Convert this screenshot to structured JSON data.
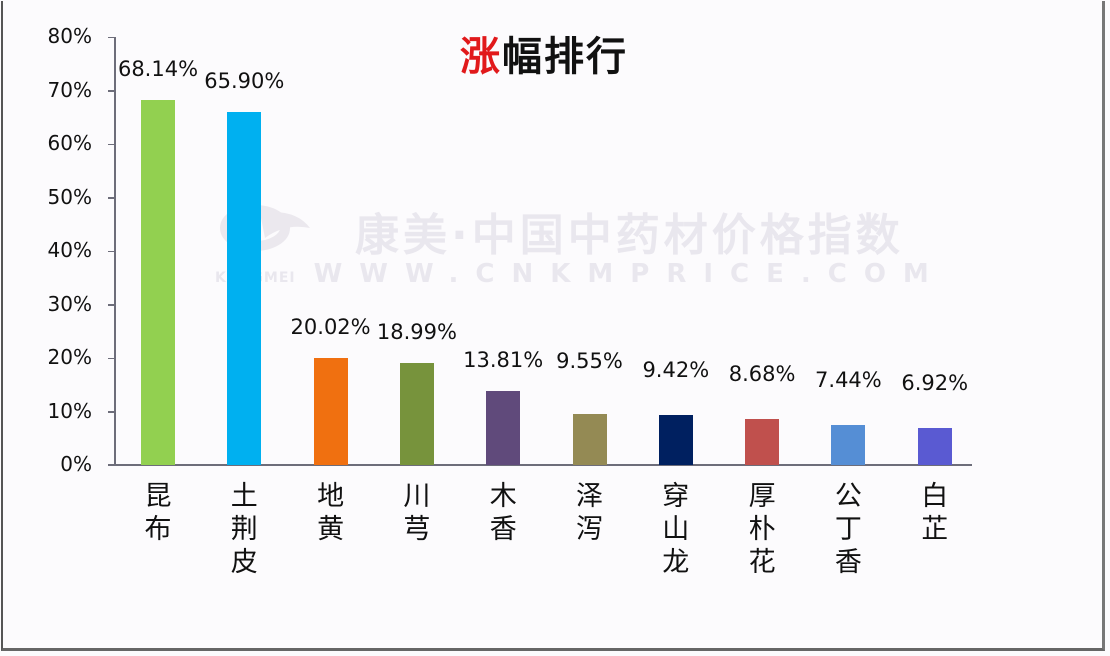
{
  "title": {
    "highlight": "涨",
    "rest": "幅排行",
    "highlight_color": "#e1191b"
  },
  "watermark": {
    "cn": "康美·中国中药材价格指数",
    "en": "WWW.CNKMPRICE.COM",
    "logo_text": "KANGMEI"
  },
  "chart_data": {
    "type": "bar",
    "title": "涨幅排行",
    "xlabel": "",
    "ylabel": "",
    "ylim": [
      0,
      80
    ],
    "yticks": [
      "0%",
      "10%",
      "20%",
      "30%",
      "40%",
      "50%",
      "60%",
      "70%",
      "80%"
    ],
    "grid": false,
    "legend": null,
    "categories": [
      "昆布",
      "土荆皮",
      "地黄",
      "川芎",
      "木香",
      "泽泻",
      "穿山龙",
      "厚朴花",
      "公丁香",
      "白芷"
    ],
    "values": [
      68.14,
      65.9,
      20.02,
      18.99,
      13.81,
      9.55,
      9.42,
      8.68,
      7.44,
      6.92
    ],
    "labels": [
      "68.14%",
      "65.90%",
      "20.02%",
      "18.99%",
      "13.81%",
      "9.55%",
      "9.42%",
      "8.68%",
      "7.44%",
      "6.92%"
    ],
    "colors": [
      "#92d050",
      "#00b0f0",
      "#f07010",
      "#77933c",
      "#604a7b",
      "#948a54",
      "#002060",
      "#c0504d",
      "#558ed5",
      "#5a5ad2"
    ]
  }
}
